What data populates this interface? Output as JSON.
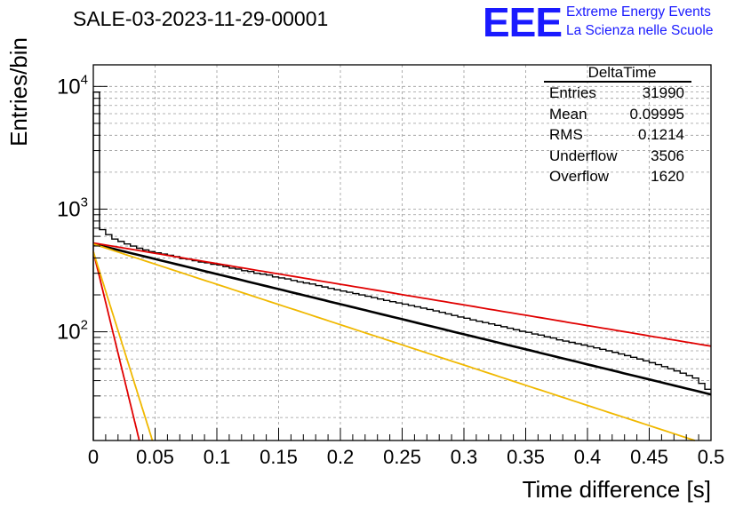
{
  "title": "SALE-03-2023-11-29-00001",
  "logo": {
    "letters": "EEE",
    "line1": "Extreme Energy Events",
    "line2": "La Scienza nelle Scuole",
    "color": "#1a1aff"
  },
  "stats": {
    "title": "DeltaTime",
    "rows": [
      {
        "label": "Entries",
        "value": "31990"
      },
      {
        "label": "Mean",
        "value": "0.09995"
      },
      {
        "label": "RMS",
        "value": "0.1214"
      },
      {
        "label": "Underflow",
        "value": "3506"
      },
      {
        "label": "Overflow",
        "value": "1620"
      }
    ]
  },
  "chart_data": {
    "type": "line",
    "title": "SALE-03-2023-11-29-00001",
    "xlabel": "Time difference [s]",
    "ylabel": "Entries/bin",
    "xlim": [
      0,
      0.5
    ],
    "ylim": [
      13,
      15000
    ],
    "yscale": "log",
    "grid": true,
    "x_ticks": [
      "0",
      "0.05",
      "0.1",
      "0.15",
      "0.2",
      "0.25",
      "0.3",
      "0.35",
      "0.4",
      "0.45",
      "0.5"
    ],
    "y_ticks": [
      {
        "base": "10",
        "exp": "2",
        "value": 100
      },
      {
        "base": "10",
        "exp": "3",
        "value": 1000
      },
      {
        "base": "10",
        "exp": "4",
        "value": 10000
      }
    ],
    "histogram": {
      "bin_width": 0.005,
      "values": [
        9000,
        680,
        620,
        570,
        545,
        520,
        500,
        480,
        465,
        450,
        440,
        430,
        420,
        410,
        395,
        390,
        380,
        370,
        365,
        355,
        350,
        340,
        330,
        325,
        315,
        310,
        300,
        295,
        290,
        280,
        275,
        270,
        262,
        255,
        250,
        245,
        238,
        232,
        226,
        220,
        215,
        210,
        205,
        200,
        195,
        190,
        185,
        180,
        176,
        172,
        168,
        164,
        160,
        156,
        152,
        148,
        144,
        140,
        136,
        132,
        129,
        125,
        122,
        119,
        116,
        113,
        110,
        107,
        104,
        101,
        99,
        96,
        94,
        91,
        89,
        86,
        84,
        82,
        80,
        78,
        76,
        74,
        72,
        70,
        68,
        66,
        64,
        62,
        60,
        58,
        56,
        54,
        52,
        50,
        48,
        46,
        44,
        42,
        38,
        34
      ]
    },
    "series": [
      {
        "color": "#000000",
        "a": 520,
        "tau": 0.177,
        "x": [
          0,
          0.5
        ]
      },
      {
        "color": "#e00000",
        "a": 530,
        "tau": 0.258,
        "x": [
          0,
          0.5
        ]
      },
      {
        "color": "#f0b800",
        "a": 520,
        "tau": 0.132,
        "x": [
          0,
          0.5
        ]
      },
      {
        "color": "#e00000",
        "a": 450,
        "tau": 0.0105,
        "x": [
          0,
          0.04
        ]
      },
      {
        "color": "#f0b800",
        "a": 450,
        "tau": 0.0135,
        "x": [
          0,
          0.05
        ]
      }
    ]
  }
}
